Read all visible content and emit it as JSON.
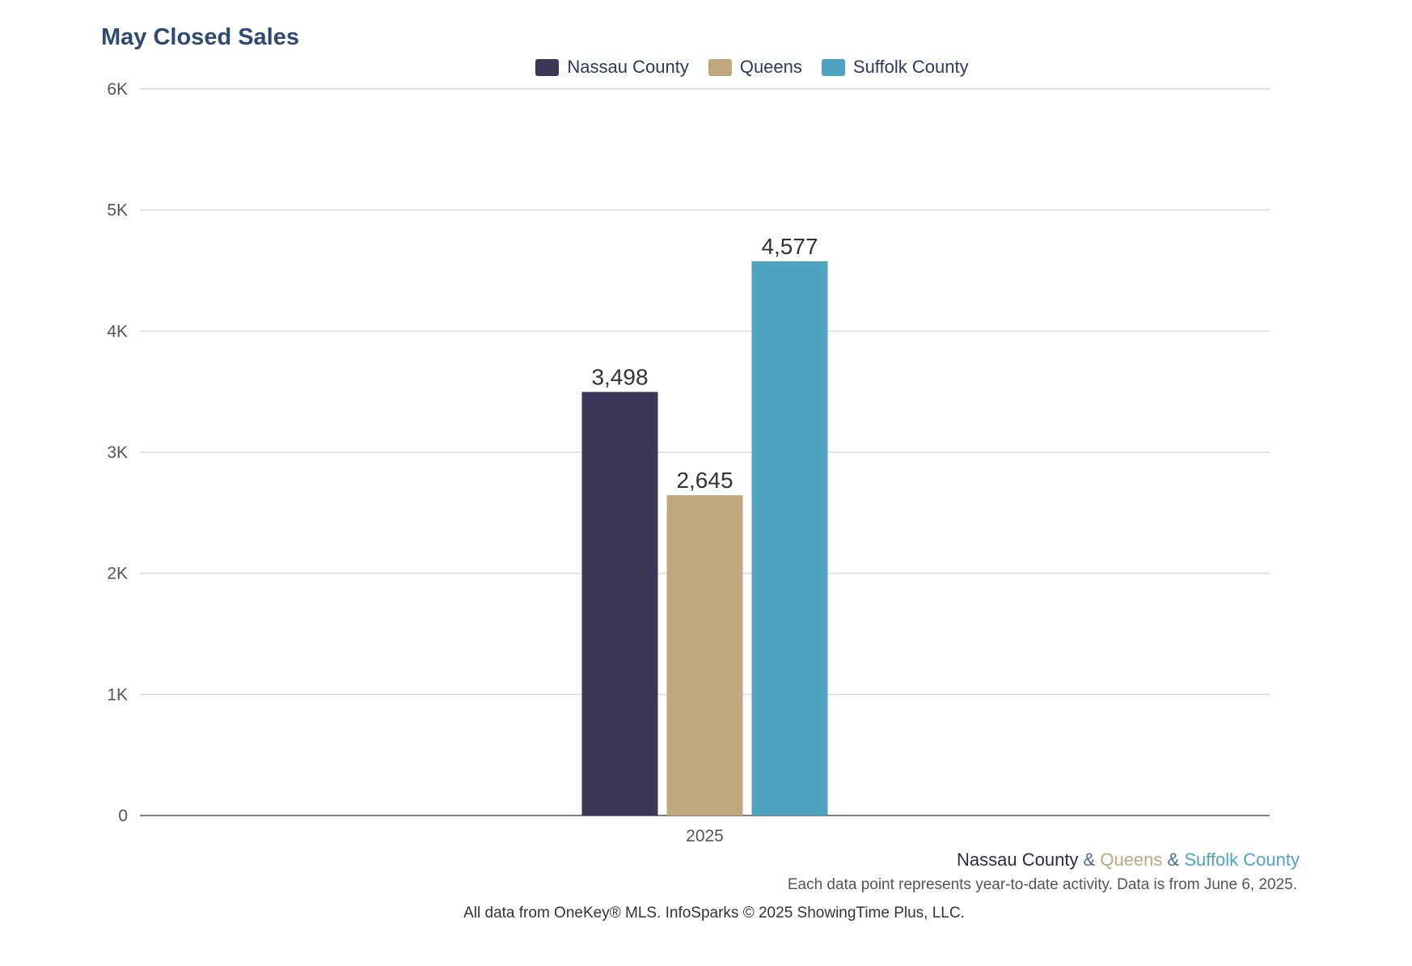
{
  "title": "May Closed Sales",
  "colors": {
    "nassau": "#3a3758",
    "queens": "#bfa87d",
    "suffolk": "#4ea3c1"
  },
  "legend": [
    {
      "label": "Nassau County",
      "color": "#3a3758"
    },
    {
      "label": "Queens",
      "color": "#bfa87d"
    },
    {
      "label": "Suffolk County",
      "color": "#4ea3c1"
    }
  ],
  "chart_data": {
    "type": "bar",
    "title": "May Closed Sales",
    "categories": [
      "2025"
    ],
    "series": [
      {
        "name": "Nassau County",
        "values": [
          3498
        ],
        "label": "3,498",
        "color": "#3a3758"
      },
      {
        "name": "Queens",
        "values": [
          2645
        ],
        "label": "2,645",
        "color": "#bfa87d"
      },
      {
        "name": "Suffolk County",
        "values": [
          4577
        ],
        "label": "4,577",
        "color": "#4ea3c1"
      }
    ],
    "ylim": [
      0,
      6000
    ],
    "yticks": [
      0,
      1000,
      2000,
      3000,
      4000,
      5000,
      6000
    ],
    "ytick_labels": [
      "0",
      "1K",
      "2K",
      "3K",
      "4K",
      "5K",
      "6K"
    ],
    "xlabel": "",
    "ylabel": "",
    "grid": true,
    "legend_position": "top-center"
  },
  "footer": {
    "series_a": "Nassau County",
    "amp1": " & ",
    "series_b": "Queens",
    "amp2": " & ",
    "series_c": "Suffolk County",
    "note": "Each data point represents year-to-date activity. Data is from June 6, 2025.",
    "credit": "All data from OneKey® MLS. InfoSparks © 2025 ShowingTime Plus, LLC."
  }
}
